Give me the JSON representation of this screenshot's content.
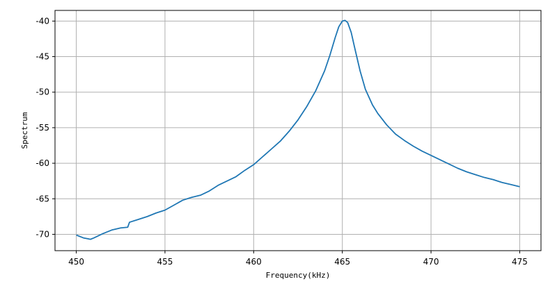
{
  "chart_data": {
    "type": "line",
    "title": "",
    "xlabel": "Frequency(kHz)",
    "ylabel": "Spectrum",
    "xlim": [
      448.8,
      476.2
    ],
    "ylim": [
      -72.3,
      -38.5
    ],
    "xticks": [
      450,
      455,
      460,
      465,
      470,
      475
    ],
    "yticks": [
      -40,
      -45,
      -50,
      -55,
      -60,
      -65,
      -70
    ],
    "xtick_labels": [
      "450",
      "455",
      "460",
      "465",
      "470",
      "475"
    ],
    "ytick_labels": [
      "-40",
      "-45",
      "-50",
      "-55",
      "-60",
      "-65",
      "-70"
    ],
    "grid": true,
    "series_color": "#1f77b4",
    "series": [
      {
        "x": [
          450.0,
          450.4,
          450.8,
          451.0,
          451.5,
          452.0,
          452.5,
          452.9,
          453.0,
          453.5,
          454.0,
          454.5,
          455.0,
          455.5,
          456.0,
          456.5,
          457.0,
          457.5,
          458.0,
          458.5,
          459.0,
          459.5,
          460.0,
          460.5,
          461.0,
          461.5,
          462.0,
          462.5,
          463.0,
          463.5,
          464.0,
          464.3,
          464.6,
          464.8,
          465.0,
          465.15,
          465.3,
          465.5,
          465.7,
          466.0,
          466.3,
          466.7,
          467.0,
          467.5,
          468.0,
          468.5,
          469.0,
          469.5,
          470.0,
          470.5,
          471.0,
          471.5,
          472.0,
          472.5,
          473.0,
          473.5,
          474.0,
          474.5,
          475.0
        ],
        "y": [
          -70.1,
          -70.5,
          -70.7,
          -70.5,
          -69.9,
          -69.4,
          -69.1,
          -69.0,
          -68.3,
          -67.9,
          -67.5,
          -67.0,
          -66.6,
          -65.9,
          -65.2,
          -64.8,
          -64.5,
          -63.9,
          -63.1,
          -62.5,
          -61.9,
          -61.0,
          -60.2,
          -59.1,
          -58.0,
          -56.9,
          -55.5,
          -53.9,
          -52.0,
          -49.8,
          -47.0,
          -44.8,
          -42.3,
          -40.8,
          -40.0,
          -39.9,
          -40.2,
          -41.6,
          -43.8,
          -47.0,
          -49.6,
          -51.8,
          -53.0,
          -54.6,
          -55.9,
          -56.8,
          -57.6,
          -58.3,
          -58.9,
          -59.5,
          -60.1,
          -60.7,
          -61.2,
          -61.6,
          -62.0,
          -62.3,
          -62.7,
          -63.0,
          -63.3
        ]
      }
    ]
  }
}
